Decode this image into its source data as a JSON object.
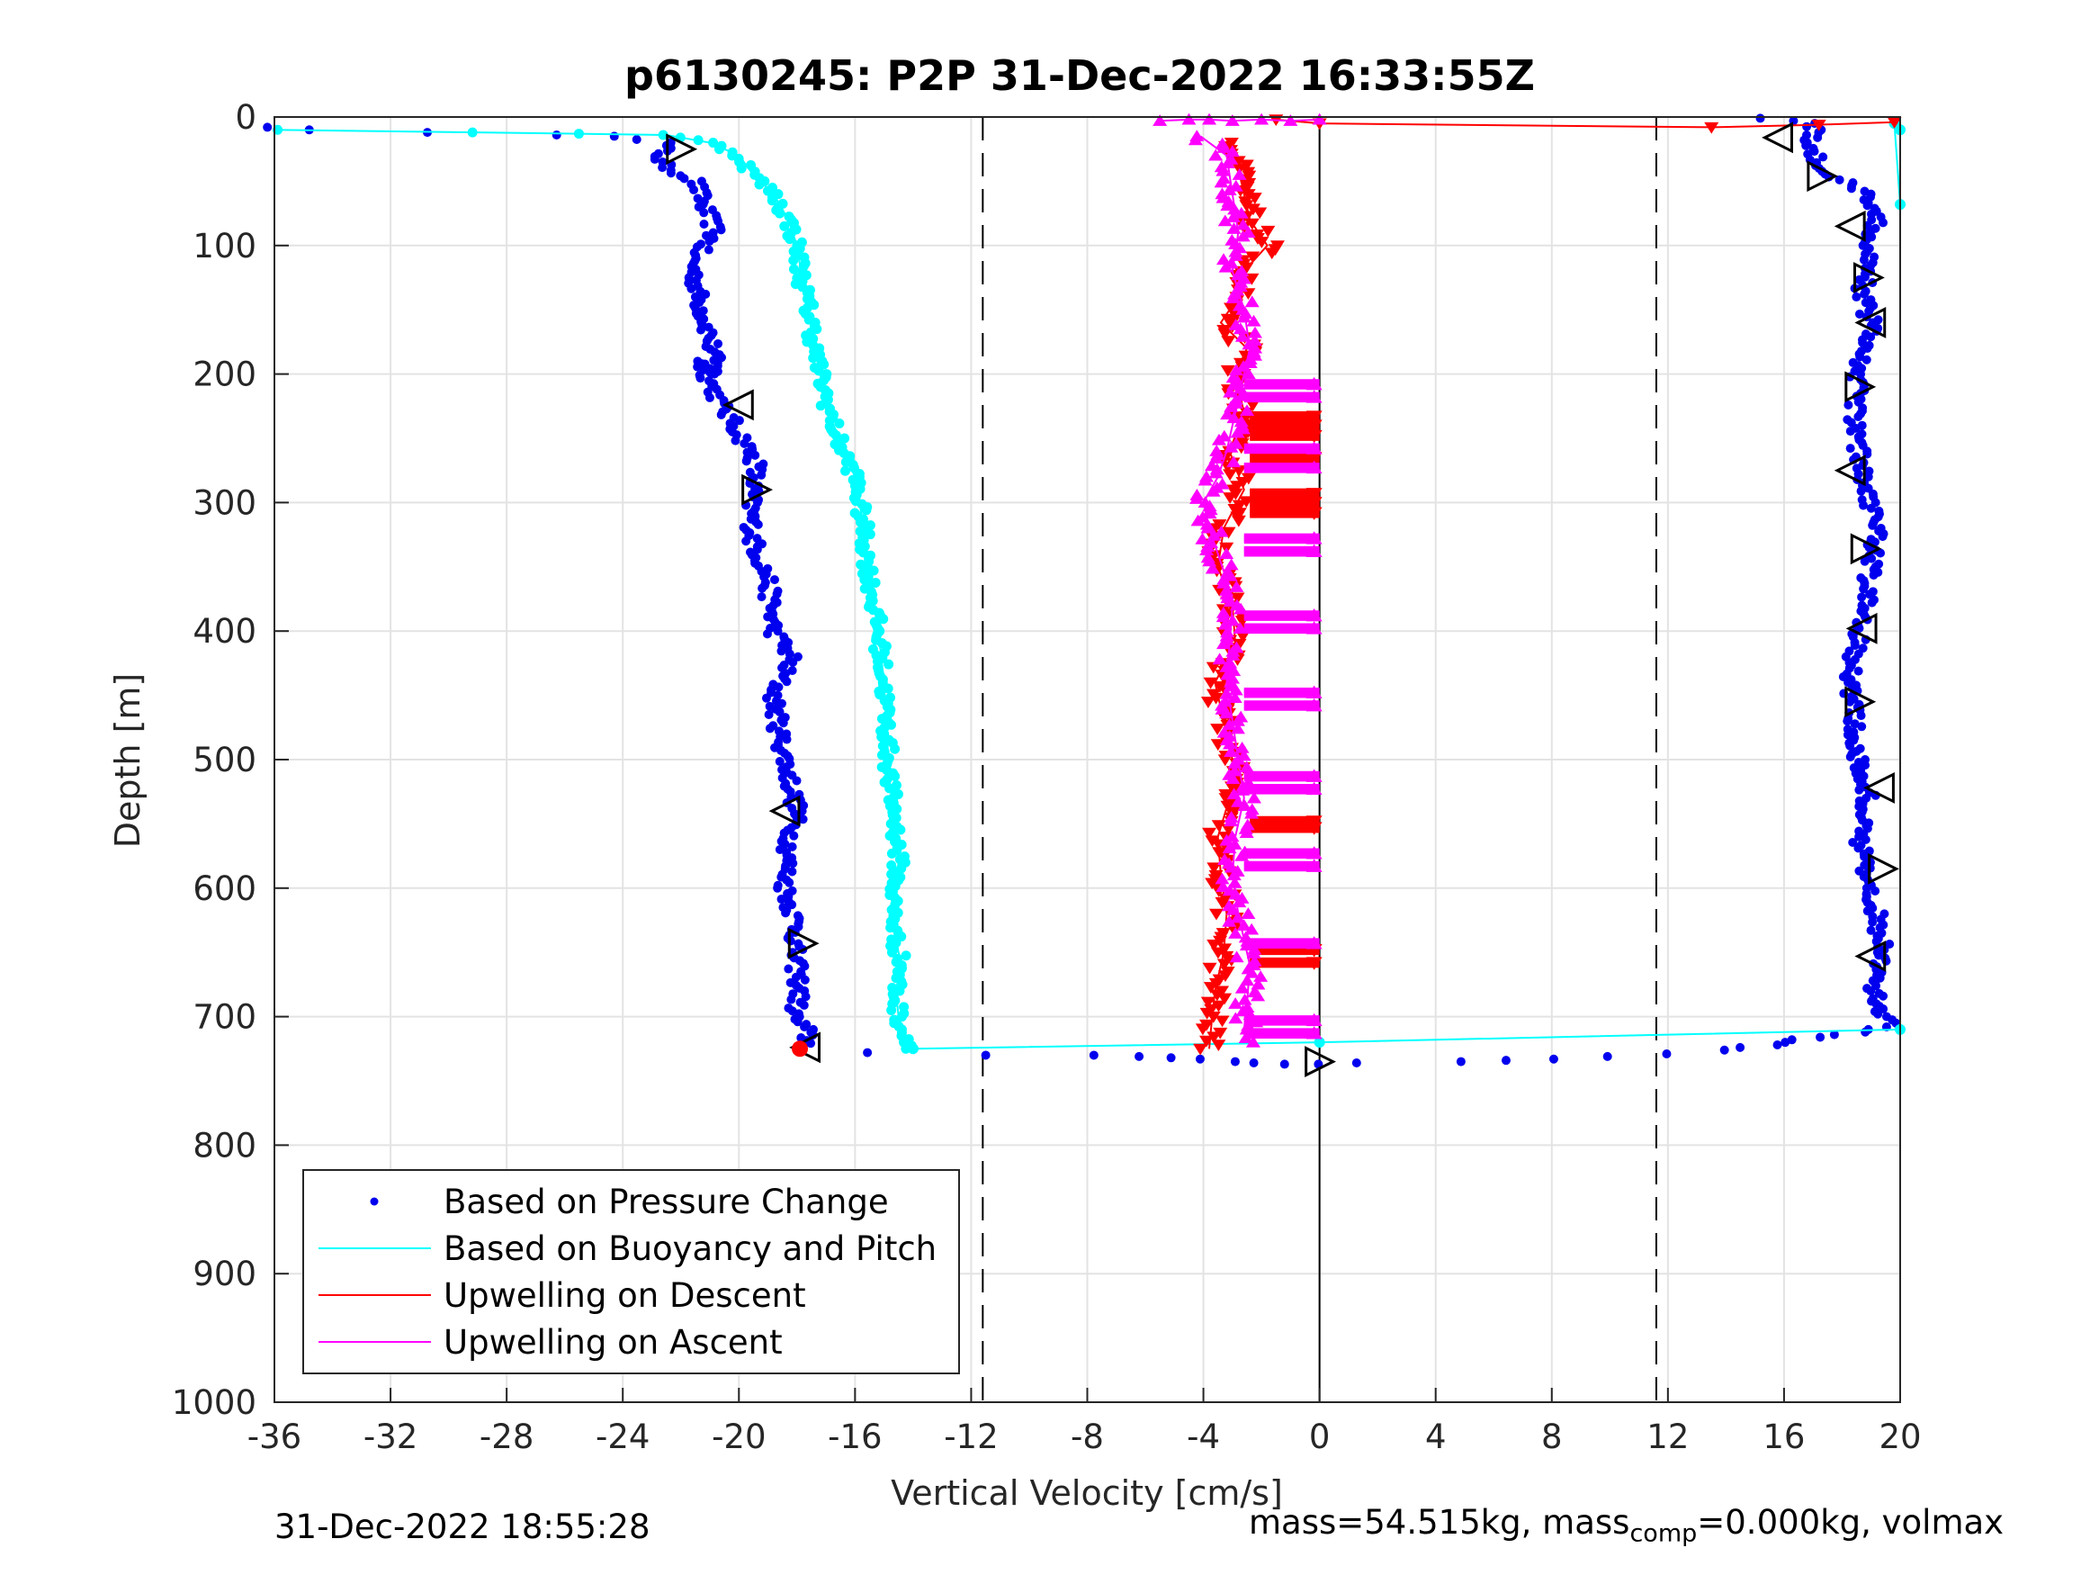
{
  "chart_data": {
    "type": "scatter",
    "title": "p6130245: P2P 31-Dec-2022 16:33:55Z",
    "xlabel": "Vertical Velocity [cm/s]",
    "ylabel": "Depth [m]",
    "xlim": [
      -36,
      20
    ],
    "ylim": [
      0,
      1000
    ],
    "y_reversed": true,
    "grid": true,
    "xticks": [
      "-36",
      "-32",
      "-28",
      "-24",
      "-20",
      "-16",
      "-12",
      "-8",
      "-4",
      "0",
      "4",
      "8",
      "12",
      "16",
      "20"
    ],
    "yticks": [
      "0",
      "100",
      "200",
      "300",
      "400",
      "500",
      "600",
      "700",
      "800",
      "900",
      "1000"
    ],
    "vertical_lines": [
      {
        "x": -11.6,
        "style": "dashed"
      },
      {
        "x": 0,
        "style": "solid"
      },
      {
        "x": 11.6,
        "style": "dashed"
      }
    ],
    "legend": {
      "position": "bottom-left",
      "entries": [
        {
          "label": "Based on Pressure Change",
          "color": "#0000ee",
          "marker": "dot"
        },
        {
          "label": "Based on Buoyancy and Pitch",
          "color": "#00ffff",
          "marker": "line"
        },
        {
          "label": "Upwelling on Descent",
          "color": "#ff0000",
          "marker": "line"
        },
        {
          "label": "Upwelling on Ascent",
          "color": "#ff00ff",
          "marker": "line"
        }
      ]
    },
    "series": [
      {
        "name": "Based on Pressure Change",
        "color": "#0000ee",
        "style": "dots",
        "profiles": [
          {
            "x": [
              -36,
              -35,
              -31,
              -26,
              -24,
              -22.5,
              -22.8,
              -21.5,
              -21.2,
              -20.8,
              -21.6,
              -21.4,
              -21.0,
              -20.8,
              -21.3,
              -20.6,
              -20.0,
              -19.4,
              -19.6,
              -19.5,
              -19.0,
              -18.8,
              -18.2,
              -18.8,
              -18.6,
              -18.3,
              -18.0,
              -18.3,
              -18.4,
              -18.0,
              -18.1,
              -17.9,
              -18.1,
              -17.7,
              -17.6
            ],
            "y": [
              8,
              10,
              12,
              14,
              15,
              20,
              35,
              50,
              70,
              90,
              110,
              140,
              170,
              200,
              190,
              225,
              245,
              270,
              300,
              330,
              360,
              400,
              420,
              450,
              480,
              510,
              540,
              570,
              600,
              630,
              650,
              680,
              700,
              710,
              725
            ]
          },
          {
            "x": [
              -15.6,
              -11.6,
              -8,
              -6.5,
              -5,
              -4,
              -3,
              -2,
              -1,
              0,
              1.2,
              4.8,
              6.5,
              8,
              10,
              12,
              14,
              15.5,
              16.5,
              17.2,
              18,
              18.6,
              19,
              19.4,
              19.6,
              19.4,
              19.3,
              19.0,
              19.3,
              19.4,
              19.2,
              18.8,
              18.6,
              18.9,
              18.6,
              18.4,
              18.2,
              18.6,
              18.8,
              19.0,
              19.2,
              18.9,
              18.7,
              18.6,
              18.4,
              18.5,
              18.5,
              18.8,
              19.0,
              18.7,
              18.8,
              18.9,
              19.2,
              19.0,
              17.2,
              16.9,
              17.0,
              16.9,
              16.5,
              15.4
            ],
            "y": [
              728,
              730,
              730,
              731,
              732,
              733,
              735,
              736,
              737,
              737,
              736,
              735,
              734,
              733,
              731,
              729,
              726,
              722,
              718,
              716,
              714,
              712,
              710,
              708,
              705,
              700,
              690,
              680,
              670,
              650,
              620,
              600,
              560,
              530,
              500,
              470,
              440,
              400,
              380,
              350,
              320,
              300,
              280,
              260,
              240,
              215,
              200,
              180,
              160,
              140,
              120,
              100,
              80,
              60,
              40,
              20,
              10,
              5,
              3,
              1
            ]
          }
        ]
      },
      {
        "name": "Based on Buoyancy and Pitch",
        "color": "#00ffff",
        "style": "line+dots",
        "profiles": [
          {
            "x": [
              -36,
              -29,
              -25.5,
              -22.5,
              -21,
              -20,
              -19.5,
              -18.8,
              -18.3,
              -18.0,
              -17.8,
              -17.5,
              -17.4,
              -17.2,
              -17.0,
              -16.6,
              -16.0,
              -15.7,
              -15.5,
              -15.2,
              -15.0,
              -14.9,
              -14.8,
              -14.6,
              -14.5,
              -14.7,
              -14.6,
              -14.4,
              -14.6,
              -14.5,
              -14.3,
              -14.1,
              -14.0
            ],
            "y": [
              10,
              12,
              13,
              14,
              20,
              30,
              45,
              60,
              80,
              100,
              130,
              160,
              180,
              200,
              220,
              250,
              280,
              320,
              360,
              400,
              440,
              480,
              520,
              550,
              580,
              610,
              640,
              660,
              680,
              700,
              715,
              720,
              725
            ]
          },
          {
            "x": [
              -14.0,
              0,
              20
            ],
            "y": [
              725,
              720,
              710
            ]
          },
          {
            "x": [
              20,
              19.8,
              20
            ],
            "y": [
              10,
              5,
              68
            ]
          }
        ]
      },
      {
        "name": "Upwelling on Descent",
        "color": "#ff0000",
        "style": "triangles-down",
        "profiles": [
          {
            "x": [
              -1.5,
              0,
              13.5,
              17.2,
              19.8
            ],
            "y": [
              2,
              5,
              8,
              6,
              4
            ]
          },
          {
            "x": [
              -3.2,
              -2.8,
              -2.6,
              -2.4,
              -1.8,
              -2.6,
              -2.8,
              -3.4,
              -2.5,
              -2.9,
              -2.6,
              -3.1,
              -2.6,
              -3.3,
              -3.5,
              -3.0,
              -2.9,
              -3.6,
              -3.3,
              -3.0,
              -3.1,
              -3.5,
              -3.4,
              -3.2,
              -3.3,
              -3.6,
              -3.7,
              -3.8
            ],
            "y": [
              20,
              40,
              60,
              80,
              100,
              120,
              140,
              160,
              180,
              200,
              230,
              260,
              290,
              320,
              350,
              380,
              410,
              440,
              470,
              500,
              530,
              560,
              590,
              620,
              650,
              680,
              700,
              725
            ]
          }
        ],
        "spikes_to_zero": [
          230,
          237,
          245,
          262,
          290,
          297,
          305,
          545,
          550,
          645,
          655
        ]
      },
      {
        "name": "Upwelling on Ascent",
        "color": "#ff00ff",
        "style": "triangles-up",
        "profiles": [
          {
            "x": [
              -5.5,
              -4.5,
              -3.8,
              -3.0,
              -2.0,
              -1.0,
              0
            ],
            "y": [
              3,
              2,
              2,
              3,
              2,
              3,
              2
            ]
          },
          {
            "x": [
              -4.1,
              -3.2,
              -3.0,
              -2.8,
              -3.0,
              -2.6,
              -2.4,
              -2.6,
              -2.8,
              -3.0,
              -3.2,
              -3.5,
              -4.0,
              -3.8,
              -3.5,
              -3.2,
              -3.0,
              -3.1,
              -3.2,
              -3.0,
              -2.8,
              -2.6,
              -2.9,
              -3.0,
              -2.8,
              -2.4,
              -2.5,
              -2.6,
              -2.4
            ],
            "y": [
              15,
              30,
              60,
              90,
              120,
              150,
              180,
              200,
              220,
              240,
              260,
              280,
              300,
              320,
              340,
              360,
              380,
              410,
              440,
              470,
              500,
              530,
              560,
              590,
              620,
              660,
              690,
              710,
              720
            ]
          }
        ],
        "spikes_to_zero": [
          205,
          215,
          255,
          270,
          325,
          335,
          385,
          395,
          445,
          455,
          510,
          520,
          570,
          580,
          640,
          700,
          710
        ]
      }
    ],
    "turn_markers": [
      {
        "x": -22,
        "y": 25,
        "dir": "right"
      },
      {
        "x": -20.0,
        "y": 224,
        "dir": "left"
      },
      {
        "x": -19.4,
        "y": 290,
        "dir": "right"
      },
      {
        "x": -18.4,
        "y": 540,
        "dir": "left"
      },
      {
        "x": -17.8,
        "y": 643,
        "dir": "right"
      },
      {
        "x": -17.7,
        "y": 724,
        "dir": "left"
      },
      {
        "x": 0,
        "y": 735,
        "dir": "right"
      },
      {
        "x": 15.8,
        "y": 16,
        "dir": "left"
      },
      {
        "x": 17.3,
        "y": 46,
        "dir": "right"
      },
      {
        "x": 18.3,
        "y": 85,
        "dir": "left"
      },
      {
        "x": 18.9,
        "y": 125,
        "dir": "right"
      },
      {
        "x": 19.0,
        "y": 160,
        "dir": "left"
      },
      {
        "x": 18.6,
        "y": 210,
        "dir": "right"
      },
      {
        "x": 18.3,
        "y": 275,
        "dir": "left"
      },
      {
        "x": 18.8,
        "y": 336,
        "dir": "right"
      },
      {
        "x": 18.7,
        "y": 398,
        "dir": "left"
      },
      {
        "x": 18.6,
        "y": 455,
        "dir": "right"
      },
      {
        "x": 19.3,
        "y": 522,
        "dir": "left"
      },
      {
        "x": 19.4,
        "y": 585,
        "dir": "right"
      },
      {
        "x": 19.0,
        "y": 653,
        "dir": "left"
      }
    ],
    "red_star": {
      "x": -17.9,
      "y": 725
    }
  },
  "footer": {
    "timestamp": "31-Dec-2022 18:55:28",
    "mass_prefix": "mass=54.515kg, mass",
    "mass_sub": "comp",
    "mass_suffix": "=0.000kg, volmax"
  }
}
